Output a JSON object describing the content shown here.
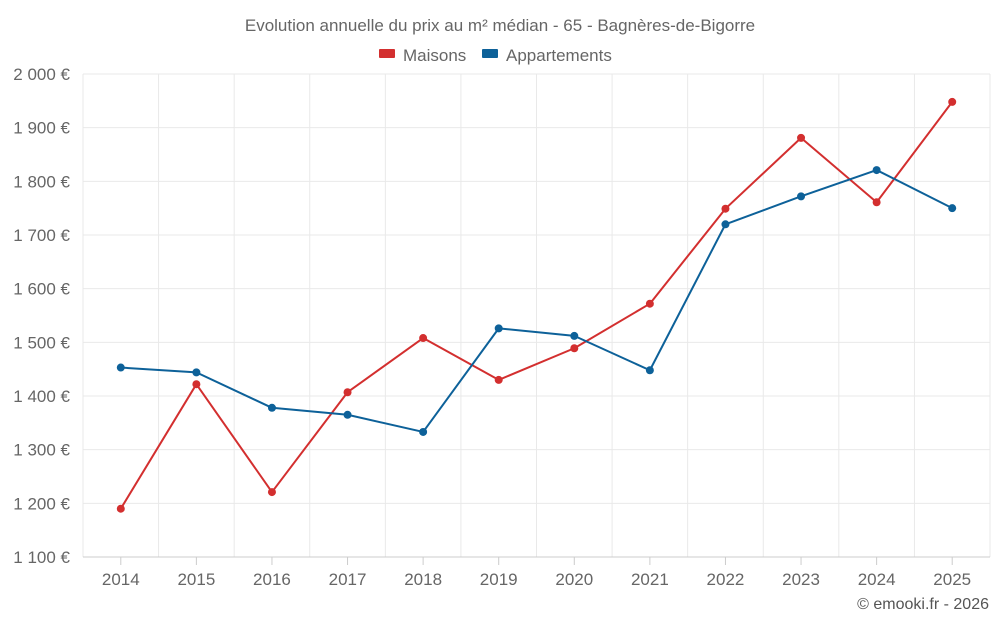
{
  "chart_data": {
    "type": "line",
    "title": "Evolution annuelle du prix au m² médian - 65 - Bagnères-de-Bigorre",
    "categories": [
      "2014",
      "2015",
      "2016",
      "2017",
      "2018",
      "2019",
      "2020",
      "2021",
      "2022",
      "2023",
      "2024",
      "2025"
    ],
    "series": [
      {
        "name": "Maisons",
        "color": "#d32f2f",
        "values": [
          1190,
          1422,
          1221,
          1407,
          1508,
          1430,
          1489,
          1572,
          1749,
          1881,
          1761,
          1948
        ]
      },
      {
        "name": "Appartements",
        "color": "#0d6199",
        "values": [
          1453,
          1444,
          1378,
          1365,
          1333,
          1526,
          1512,
          1448,
          1720,
          1772,
          1821,
          1750
        ]
      }
    ],
    "ylim": [
      1100,
      2000
    ],
    "yticks": [
      1100,
      1200,
      1300,
      1400,
      1500,
      1600,
      1700,
      1800,
      1900,
      2000
    ],
    "ytick_labels": [
      "1 100 €",
      "1 200 €",
      "1 300 €",
      "1 400 €",
      "1 500 €",
      "1 600 €",
      "1 700 €",
      "1 800 €",
      "1 900 €",
      "2 000 €"
    ],
    "xlabel": "",
    "ylabel": "",
    "grid": true,
    "legend_position": "top-center",
    "credit": "© emooki.fr - 2026"
  },
  "colors": {
    "grid": "#e9e9e9",
    "axis": "#cccccc",
    "text": "#666666"
  }
}
